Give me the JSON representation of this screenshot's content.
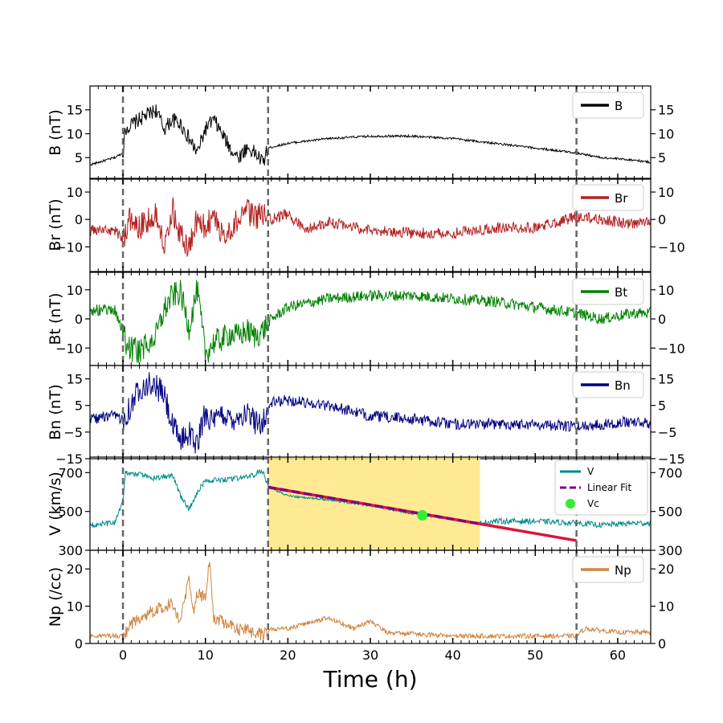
{
  "chart_data": {
    "type": "line",
    "xlabel": "Time (h)",
    "xlim": [
      -4,
      64
    ],
    "xticks": [
      0,
      10,
      20,
      30,
      40,
      50,
      60
    ],
    "boundaries_h": [
      0,
      17.6,
      55
    ],
    "fit_region_h": [
      17.6,
      43.3
    ],
    "panels": [
      {
        "id": "B",
        "ylabel": "B (nT)",
        "legend": [
          "B"
        ],
        "color": "#000000",
        "ylim": [
          0.5,
          20
        ],
        "yticks": [
          5,
          10,
          15
        ],
        "ytick_labels": [
          "5",
          "10",
          "15"
        ],
        "series": {
          "name": "B",
          "x": [
            -4,
            -1,
            0,
            0.3,
            2,
            4,
            5,
            6,
            7,
            8,
            9,
            10,
            11,
            12,
            13,
            14,
            15,
            16,
            17,
            17.6,
            20,
            25,
            30,
            35,
            40,
            45,
            50,
            55,
            58,
            62,
            64
          ],
          "y": [
            3.5,
            5,
            6,
            11,
            13,
            15,
            11,
            13,
            12,
            9,
            6,
            11,
            13,
            10,
            7,
            5,
            7,
            6,
            4,
            7,
            8,
            9,
            9.5,
            9.5,
            9,
            8,
            7,
            6,
            5,
            4.5,
            4
          ]
        }
      },
      {
        "id": "Br",
        "ylabel": "Br (nT)",
        "legend": [
          "Br"
        ],
        "color": "#b22222",
        "ylim": [
          -19,
          15
        ],
        "yticks": [
          -10,
          0,
          10
        ],
        "ytick_labels": [
          "−10",
          "0",
          "10"
        ],
        "series": {
          "name": "Br",
          "x": [
            -4,
            -1,
            0,
            1,
            2,
            4,
            5,
            6,
            7,
            8,
            9,
            10,
            11,
            12,
            13,
            14,
            15,
            16,
            17,
            18,
            20,
            22,
            25,
            30,
            35,
            40,
            45,
            50,
            55,
            58,
            62,
            64
          ],
          "y": [
            -4,
            -4,
            -7,
            1,
            -3,
            2,
            -8,
            4,
            -6,
            -10,
            0,
            -3,
            2,
            -6,
            -3,
            0,
            3,
            1,
            2,
            0,
            2,
            -4,
            -1,
            -4,
            -5,
            -5,
            -3,
            -3,
            1,
            0,
            -2,
            0
          ]
        }
      },
      {
        "id": "Bt",
        "ylabel": "Bt (nT)",
        "legend": [
          "Bt"
        ],
        "color": "#008000",
        "ylim": [
          -16,
          16
        ],
        "yticks": [
          -10,
          0,
          10
        ],
        "ytick_labels": [
          "−10",
          "0",
          "10"
        ],
        "series": {
          "name": "Bt",
          "x": [
            -4,
            -1,
            0,
            0.5,
            2,
            4,
            5,
            6,
            7,
            8,
            9,
            10,
            11,
            12,
            13,
            14,
            15,
            16,
            17,
            17.6,
            20,
            25,
            30,
            35,
            40,
            45,
            50,
            55,
            58,
            62,
            64
          ],
          "y": [
            3,
            3,
            -4,
            -10,
            -11,
            -6,
            3,
            8,
            9,
            -3,
            10,
            -12,
            -8,
            -7,
            -5,
            -6,
            -4,
            -6,
            -4,
            -1,
            4,
            7,
            8,
            8,
            7,
            6,
            4,
            2,
            0,
            2,
            2
          ]
        }
      },
      {
        "id": "Bn",
        "ylabel": "Bn (nT)",
        "legend": [
          "Bn"
        ],
        "color": "#000080",
        "ylim": [
          -15,
          20
        ],
        "yticks": [
          -15,
          -5,
          5,
          15
        ],
        "ytick_labels": [
          "−15",
          "−5",
          "5",
          "15"
        ],
        "series": {
          "name": "Bn",
          "x": [
            -4,
            -1,
            0,
            1,
            2,
            3,
            4,
            5,
            6,
            7,
            8,
            9,
            10,
            11,
            12,
            13,
            14,
            15,
            16,
            17,
            18,
            20,
            25,
            30,
            35,
            40,
            45,
            50,
            55,
            58,
            62,
            64
          ],
          "y": [
            0,
            1,
            0,
            5,
            12,
            13,
            12,
            9,
            -3,
            -8,
            -5,
            -10,
            3,
            -2,
            2,
            0,
            1,
            2,
            -1,
            -1,
            6,
            7,
            5,
            1,
            0,
            -2,
            -2,
            -2,
            -3,
            -2,
            -1,
            -2
          ]
        }
      },
      {
        "id": "V",
        "ylabel": "V (km/s)",
        "legend": [
          "V",
          "Linear Fit",
          "Vc"
        ],
        "color": "#008b8b",
        "ylim": [
          300,
          780
        ],
        "yticks": [
          300,
          500,
          700
        ],
        "ytick_labels": [
          "300",
          "500",
          "700"
        ],
        "series": {
          "name": "V",
          "x": [
            -4,
            -1,
            0,
            0.3,
            2,
            4,
            6,
            7,
            8,
            9,
            10,
            12,
            14,
            16,
            17,
            17.6,
            20,
            25,
            30,
            35,
            40,
            43,
            45,
            50,
            55,
            58,
            62,
            64
          ],
          "y": [
            430,
            440,
            560,
            700,
            690,
            670,
            690,
            580,
            510,
            600,
            660,
            660,
            670,
            690,
            710,
            630,
            580,
            560,
            530,
            490,
            460,
            440,
            450,
            450,
            440,
            430,
            440,
            440
          ]
        },
        "linear_fit": {
          "name": "Linear Fit",
          "x": [
            17.6,
            55
          ],
          "y": [
            625,
            350
          ],
          "fit_color": "#800080",
          "extension_color": "#dc143c"
        },
        "vc": {
          "name": "Vc",
          "x": 36.3,
          "y": 480,
          "color": "#33ee33"
        }
      },
      {
        "id": "Np",
        "ylabel": "Np (/cc)",
        "legend": [
          "Np"
        ],
        "color": "#cd853f",
        "ylim": [
          0,
          25
        ],
        "yticks": [
          0,
          10,
          20
        ],
        "ytick_labels": [
          "0",
          "10",
          "20"
        ],
        "series": {
          "name": "Np",
          "x": [
            -4,
            -1,
            0,
            1,
            2,
            4,
            6,
            7,
            8,
            8.5,
            9,
            10,
            10.5,
            11,
            12,
            14,
            16,
            17,
            18,
            20,
            25,
            28,
            30,
            32,
            40,
            50,
            55,
            56,
            60,
            64
          ],
          "y": [
            2,
            2,
            2,
            5,
            7,
            9,
            11,
            6,
            17,
            8,
            14,
            12,
            23,
            7,
            6,
            4,
            3,
            2,
            4,
            4,
            7,
            4,
            6,
            3,
            2,
            2,
            2,
            4,
            3,
            3
          ]
        }
      }
    ]
  }
}
